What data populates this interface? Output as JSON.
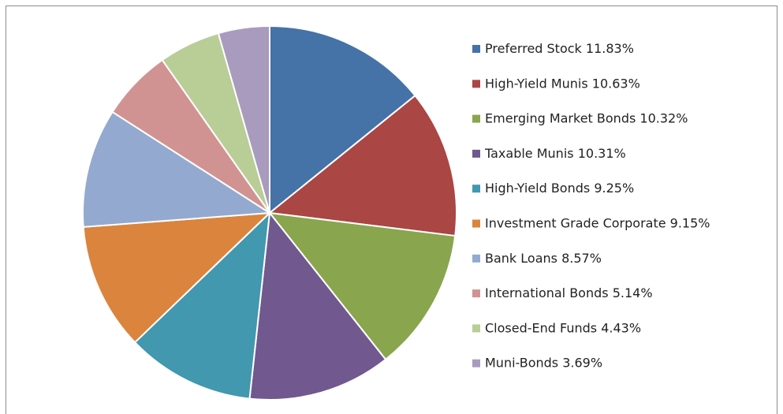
{
  "chart_data": {
    "type": "pie",
    "categories": [
      "Preferred Stock",
      "High-Yield Munis",
      "Emerging Market Bonds",
      "Taxable Munis",
      "High-Yield Bonds",
      "Investment Grade Corporate",
      "Bank Loans",
      "International Bonds",
      "Closed-End Funds",
      "Muni-Bonds"
    ],
    "values": [
      11.83,
      10.63,
      10.32,
      10.31,
      9.25,
      9.15,
      8.57,
      5.14,
      4.43,
      3.69
    ],
    "value_labels": [
      "11.83%",
      "10.63%",
      "10.32%",
      "10.31%",
      "9.25%",
      "9.15%",
      "8.57%",
      "5.14%",
      "4.43%",
      "3.69%"
    ],
    "colors": [
      "#4572a7",
      "#aa4643",
      "#89a54e",
      "#71588f",
      "#4198af",
      "#db843d",
      "#93a9cf",
      "#d19392",
      "#b9cd96",
      "#a99bbd"
    ],
    "legend": "right"
  }
}
